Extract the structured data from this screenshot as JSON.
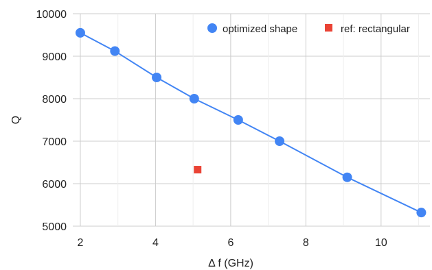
{
  "chart_data": {
    "type": "scatter",
    "xlabel": "Δ f (GHz)",
    "ylabel": "Q",
    "xlim": [
      1.8,
      11.3
    ],
    "ylim": [
      5000,
      10000
    ],
    "x_ticks": [
      2,
      4,
      6,
      8,
      10
    ],
    "y_ticks": [
      5000,
      6000,
      7000,
      8000,
      9000,
      10000
    ],
    "x_tick_labels": [
      "2",
      "4",
      "6",
      "8",
      "10"
    ],
    "y_tick_labels": [
      "5000",
      "6000",
      "7000",
      "8000",
      "9000",
      "10000"
    ],
    "grid": true,
    "legend_position": "top-right",
    "series": [
      {
        "name": "optimized shape",
        "marker": "circle",
        "line": true,
        "color": "#4285f4",
        "x": [
          2.0,
          2.92,
          4.03,
          5.03,
          6.2,
          7.3,
          9.1,
          11.07
        ],
        "y": [
          9550,
          9120,
          8500,
          8000,
          7500,
          7000,
          6150,
          5320
        ]
      },
      {
        "name": "ref: rectangular",
        "marker": "square",
        "line": false,
        "color": "#ea4335",
        "x": [
          5.12
        ],
        "y": [
          6330
        ]
      }
    ]
  }
}
